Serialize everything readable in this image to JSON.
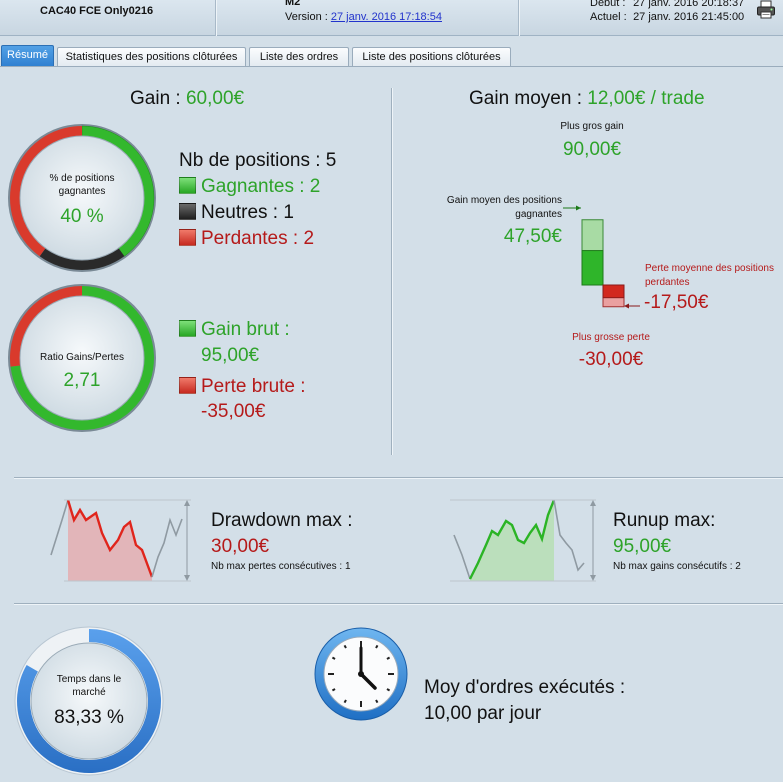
{
  "header": {
    "strategy": "CAC40 FCE Only0216",
    "strategy_name": "M2",
    "version_label": "Version : ",
    "version_link": "27 janv. 2016 17:18:54",
    "debut_label": "Début :",
    "debut_value": "27 janv. 2016 20:18:37",
    "actuel_label": "Actuel :",
    "actuel_value": "27 janv. 2016 21:45:00",
    "print_icon": "printer-icon"
  },
  "tabs": [
    {
      "label": "Résumé",
      "active": true
    },
    {
      "label": "Statistiques des positions clôturées",
      "active": false
    },
    {
      "label": "Liste des ordres",
      "active": false
    },
    {
      "label": "Liste des positions clôturées",
      "active": false
    }
  ],
  "summary": {
    "gain_label": "Gain : ",
    "gain_value": "60,00€",
    "ring1": {
      "title": "% de positions gagnantes",
      "value": "40 %",
      "fractions": {
        "win": 0.4,
        "neutral": 0.2,
        "loss": 0.4
      }
    },
    "positions": {
      "count_label": "Nb de positions : 5",
      "winners": "Gagnantes : 2",
      "neutral": "Neutres : 1",
      "losers": "Perdantes : 2"
    },
    "ring2": {
      "title": "Ratio Gains/Pertes",
      "value": "2,71",
      "fractions": {
        "gain": 0.7308,
        "loss": 0.2692
      }
    },
    "gross": {
      "gain_label": "Gain brut :",
      "gain_value": "95,00€",
      "loss_label": "Perte brute :",
      "loss_value": "-35,00€"
    }
  },
  "average": {
    "title_label": "Gain moyen : ",
    "title_value": "12,00€ / trade",
    "max_gain_label": "Plus gros gain",
    "max_gain_value": "90,00€",
    "avg_win_label": "Gain moyen des positions gagnantes",
    "avg_win_value": "47,50€",
    "avg_loss_label": "Perte moyenne des positions perdantes",
    "avg_loss_value": "-17,50€",
    "max_loss_label": "Plus grosse perte",
    "max_loss_value": "-30,00€",
    "bar_values": {
      "max_gain": 90,
      "avg_win": 47.5,
      "avg_loss": -17.5,
      "max_loss": -30
    }
  },
  "drawdown": {
    "label": "Drawdown max :",
    "value": "30,00€",
    "sub": "Nb max pertes consécutives : 1"
  },
  "runup": {
    "label": "Runup max:",
    "value": "95,00€",
    "sub": "Nb max gains consécutifs : 2"
  },
  "market_time": {
    "title": "Temps dans le marché",
    "value": "83,33 %",
    "fraction": 0.8333
  },
  "orders": {
    "title": "Moy d'ordres exécutés :",
    "value": "10,00 par jour",
    "icon": "clock-icon"
  },
  "colors": {
    "green": "#2ea32a",
    "red": "#b51a1a",
    "tab_active": "#3a8bdc",
    "ring_blue": "#3d86d8"
  }
}
